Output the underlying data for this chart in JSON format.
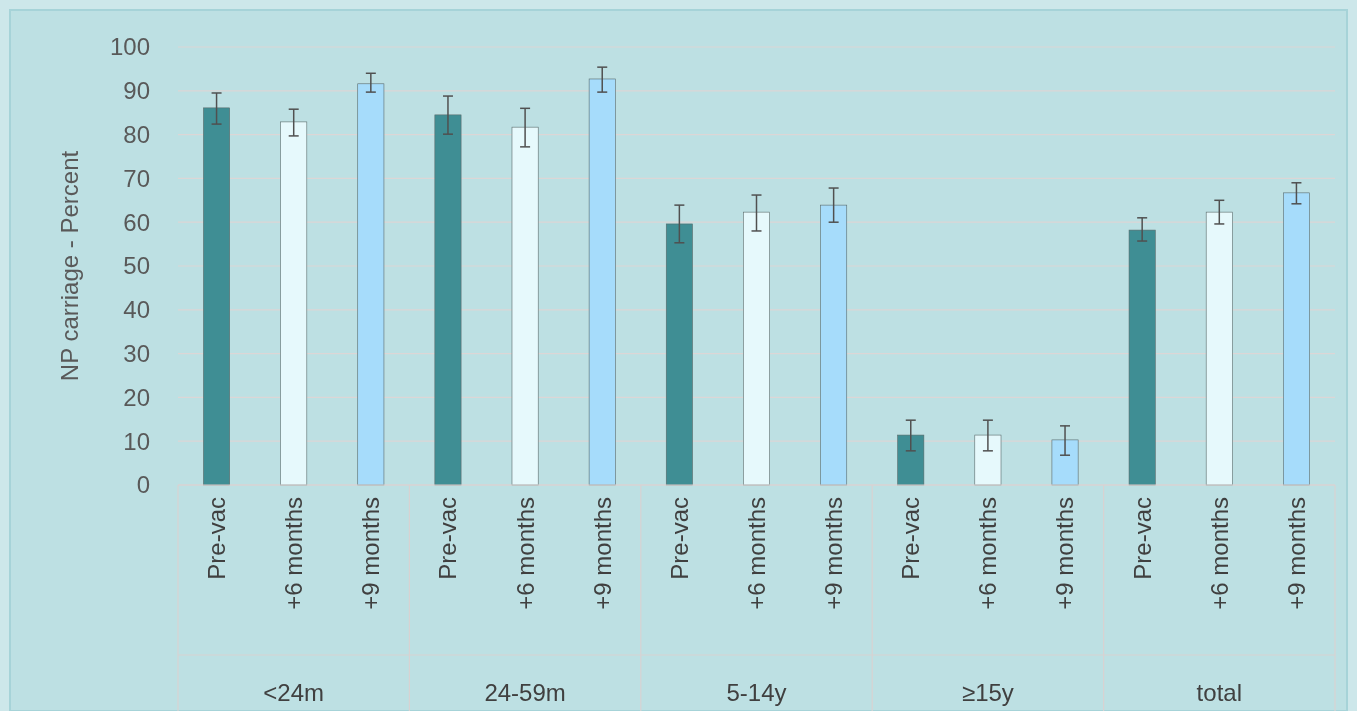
{
  "chart_data": {
    "type": "bar",
    "ylabel": "NP carriage - Percent",
    "categories": [
      "Pre-vac",
      "+6 months",
      "+9 months",
      "Pre-vac",
      "+6 months",
      "+9 months",
      "Pre-vac",
      "+6 months",
      "+9 months",
      "Pre-vac",
      "+6 months",
      "+9 months",
      "Pre-vac",
      "+6 months",
      "+9 months"
    ],
    "values": [
      86.1,
      82.9,
      91.6,
      84.5,
      81.7,
      92.7,
      59.6,
      62.3,
      63.9,
      11.4,
      11.4,
      10.3,
      58.2,
      62.3,
      66.7
    ],
    "colors": [
      "#3f8e94",
      "#e6f9fc",
      "#a6dcfb",
      "#3f8e94",
      "#e6f9fc",
      "#a6dcfb",
      "#3f8e94",
      "#e6f9fc",
      "#a6dcfb",
      "#3f8e94",
      "#e6f9fc",
      "#a6dcfb",
      "#3f8e94",
      "#e6f9fc",
      "#a6dcfb"
    ],
    "errors": [
      [
        82.4,
        89.5
      ],
      [
        79.7,
        85.8
      ],
      [
        89.7,
        94
      ],
      [
        80.1,
        88.8
      ],
      [
        77.2,
        86
      ],
      [
        89.7,
        95.4
      ],
      [
        55.3,
        63.9
      ],
      [
        58,
        66.2
      ],
      [
        60,
        67.8
      ],
      [
        7.8,
        14.8
      ],
      [
        7.8,
        14.8
      ],
      [
        6.8,
        13.5
      ],
      [
        55.7,
        61
      ],
      [
        59.6,
        65
      ],
      [
        64.2,
        69
      ]
    ],
    "annotations": [
      "<24m",
      "24-59m",
      "5-14y",
      "≥15y",
      "total"
    ],
    "ylim": [
      0,
      100
    ],
    "yticks": [
      0,
      10,
      20,
      30,
      40,
      50,
      60,
      70,
      80,
      90,
      100
    ],
    "grid": "y"
  }
}
